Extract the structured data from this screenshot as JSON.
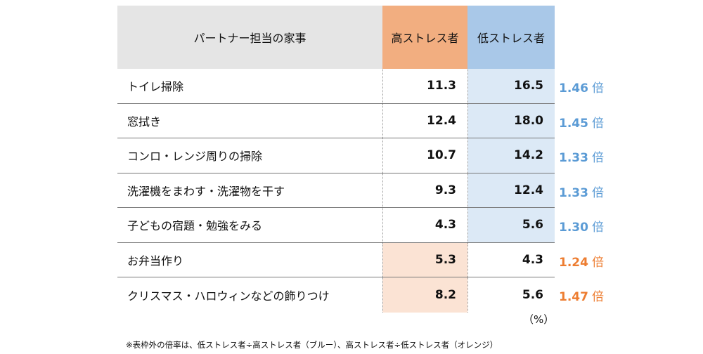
{
  "chart_data": {
    "type": "table",
    "columns": [
      "パートナー担当の家事",
      "高ストレス者",
      "低ストレス者"
    ],
    "rows": [
      {
        "item": "トイレ掃除",
        "high": "11.3",
        "low": "16.5",
        "ratio": "1.46",
        "unit": "倍",
        "higher": "low"
      },
      {
        "item": "窓拭き",
        "high": "12.4",
        "low": "18.0",
        "ratio": "1.45",
        "unit": "倍",
        "higher": "low"
      },
      {
        "item": "コンロ・レンジ周りの掃除",
        "high": "10.7",
        "low": "14.2",
        "ratio": "1.33",
        "unit": "倍",
        "higher": "low"
      },
      {
        "item": "洗濯機をまわす・洗濯物を干す",
        "high": "9.3",
        "low": "12.4",
        "ratio": "1.33",
        "unit": "倍",
        "higher": "low"
      },
      {
        "item": "子どもの宿題・勉強をみる",
        "high": "4.3",
        "low": "5.6",
        "ratio": "1.30",
        "unit": "倍",
        "higher": "low"
      },
      {
        "item": "お弁当作り",
        "high": "5.3",
        "low": "4.3",
        "ratio": "1.24",
        "unit": "倍",
        "higher": "high"
      },
      {
        "item": "クリスマス・ハロウィンなどの飾りつけ",
        "high": "8.2",
        "low": "5.6",
        "ratio": "1.47",
        "unit": "倍",
        "higher": "high"
      }
    ],
    "unit_label": "（%）",
    "note": "※表枠外の倍率は、低ストレス者÷高ストレス者（ブルー）、高ストレス者÷低ストレス者（オレンジ）"
  },
  "colors": {
    "header_gray": "#e5e5e5",
    "high_header": "#f2ae80",
    "low_header": "#a9c8e8",
    "high_light": "#fbe3d4",
    "low_light": "#dce9f6",
    "ratio_blue": "#5b9bd5",
    "ratio_orange": "#ed7d31"
  }
}
